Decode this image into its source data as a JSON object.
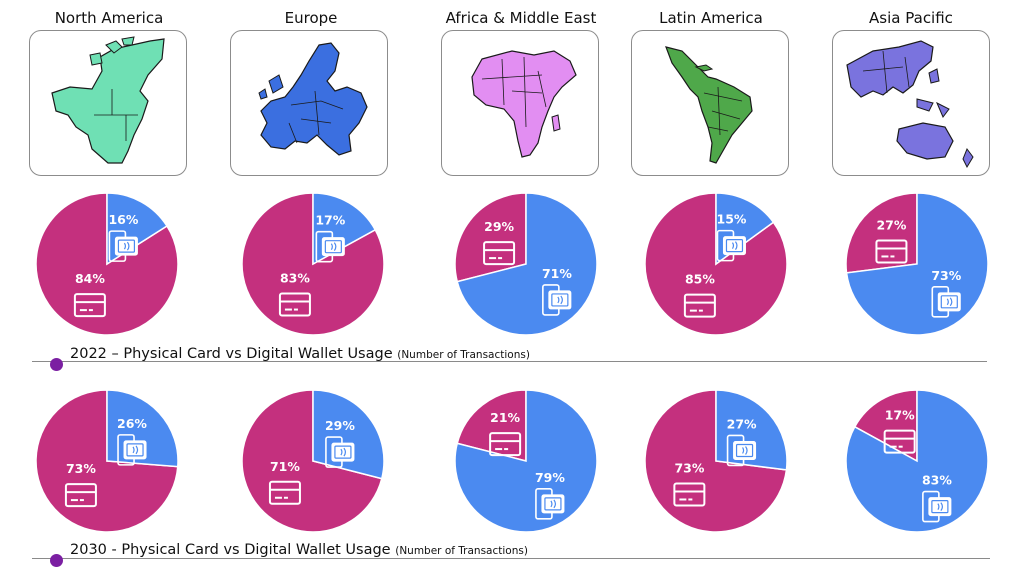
{
  "colors": {
    "physical_card": "#c4307e",
    "digital_wallet": "#4b8af0",
    "timeline_dot": "#7b1fa2"
  },
  "regions": [
    {
      "name": "North America",
      "map_color": "#6fe0b4",
      "icon": "north-america-map-icon"
    },
    {
      "name": "Europe",
      "map_color": "#3b6fe0",
      "icon": "europe-map-icon"
    },
    {
      "name": "Africa & Middle East",
      "map_color": "#e28ef2",
      "icon": "africa-middle-east-map-icon"
    },
    {
      "name": "Latin America",
      "map_color": "#4fa84a",
      "icon": "latin-america-map-icon"
    },
    {
      "name": "Asia Pacific",
      "map_color": "#7a73de",
      "icon": "asia-pacific-map-icon"
    }
  ],
  "sections": [
    {
      "year_title": "2022 – Physical Card vs Digital Wallet Usage",
      "subtitle": "(Number of Transactions)"
    },
    {
      "year_title": "2030 - Physical Card vs Digital Wallet Usage",
      "subtitle": "(Number of Transactions)"
    }
  ],
  "chart_data": [
    {
      "type": "pie",
      "year": "2022",
      "region": "North America",
      "series": [
        {
          "name": "Digital Wallet",
          "value": 16,
          "label": "16%"
        },
        {
          "name": "Physical Card",
          "value": 84,
          "label": "84%"
        }
      ]
    },
    {
      "type": "pie",
      "year": "2022",
      "region": "Europe",
      "series": [
        {
          "name": "Digital Wallet",
          "value": 17,
          "label": "17%"
        },
        {
          "name": "Physical Card",
          "value": 83,
          "label": "83%"
        }
      ]
    },
    {
      "type": "pie",
      "year": "2022",
      "region": "Africa & Middle East",
      "series": [
        {
          "name": "Digital Wallet",
          "value": 71,
          "label": "71%"
        },
        {
          "name": "Physical Card",
          "value": 29,
          "label": "29%"
        }
      ]
    },
    {
      "type": "pie",
      "year": "2022",
      "region": "Latin America",
      "series": [
        {
          "name": "Digital Wallet",
          "value": 15,
          "label": "15%"
        },
        {
          "name": "Physical Card",
          "value": 85,
          "label": "85%"
        }
      ]
    },
    {
      "type": "pie",
      "year": "2022",
      "region": "Asia Pacific",
      "series": [
        {
          "name": "Digital Wallet",
          "value": 73,
          "label": "73%"
        },
        {
          "name": "Physical Card",
          "value": 27,
          "label": "27%"
        }
      ]
    },
    {
      "type": "pie",
      "year": "2030",
      "region": "North America",
      "series": [
        {
          "name": "Digital Wallet",
          "value": 26,
          "label": "26%"
        },
        {
          "name": "Physical Card",
          "value": 73,
          "label": "73%"
        }
      ]
    },
    {
      "type": "pie",
      "year": "2030",
      "region": "Europe",
      "series": [
        {
          "name": "Digital Wallet",
          "value": 29,
          "label": "29%"
        },
        {
          "name": "Physical Card",
          "value": 71,
          "label": "71%"
        }
      ]
    },
    {
      "type": "pie",
      "year": "2030",
      "region": "Africa & Middle East",
      "series": [
        {
          "name": "Digital Wallet",
          "value": 79,
          "label": "79%"
        },
        {
          "name": "Physical Card",
          "value": 21,
          "label": "21%"
        }
      ]
    },
    {
      "type": "pie",
      "year": "2030",
      "region": "Latin America",
      "series": [
        {
          "name": "Digital Wallet",
          "value": 27,
          "label": "27%"
        },
        {
          "name": "Physical Card",
          "value": 73,
          "label": "73%"
        }
      ]
    },
    {
      "type": "pie",
      "year": "2030",
      "region": "Asia Pacific",
      "series": [
        {
          "name": "Digital Wallet",
          "value": 83,
          "label": "83%"
        },
        {
          "name": "Physical Card",
          "value": 17,
          "label": "17%"
        }
      ]
    }
  ]
}
